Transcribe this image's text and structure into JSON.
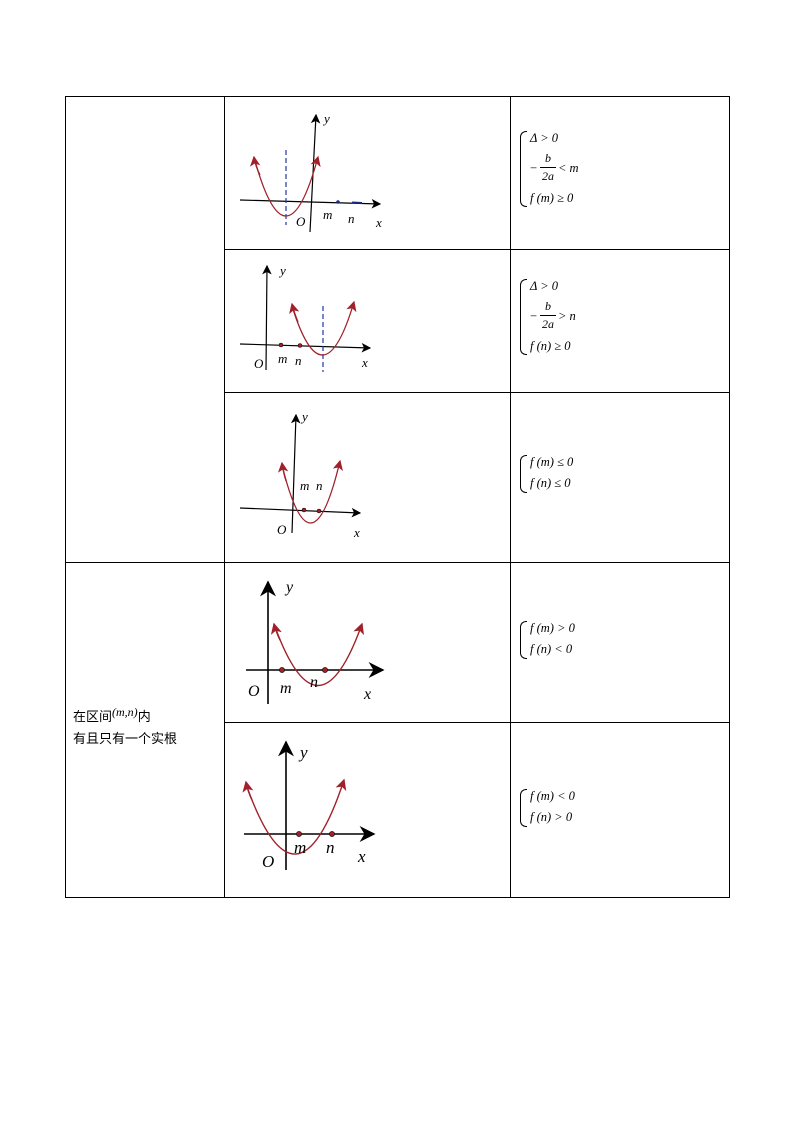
{
  "row2": {
    "label_prefix": "在区间",
    "label_interval": "(m,n)",
    "label_suffix": "内",
    "label_line2": "有且只有一个实根"
  },
  "axes": {
    "x": "x",
    "y": "y",
    "origin": "O",
    "m": "m",
    "n": "n"
  },
  "conditions": {
    "c1": {
      "l1": "Δ > 0",
      "frac_num": "b",
      "frac_den": "2a",
      "frac_prefix": "−",
      "frac_rel": "< m",
      "l3": "f (m) ≥ 0"
    },
    "c2": {
      "l1": "Δ > 0",
      "frac_num": "b",
      "frac_den": "2a",
      "frac_prefix": "−",
      "frac_rel": "> n",
      "l3": "f (n) ≥ 0"
    },
    "c3": {
      "l1": "f (m) ≤ 0",
      "l2": "f (n) ≤ 0"
    },
    "c4": {
      "l1": "f (m) > 0",
      "l2": "f (n) < 0"
    },
    "c5": {
      "l1": "f (m) < 0",
      "l2": "f (n) > 0"
    }
  },
  "colors": {
    "curve": "#a0212b",
    "dashed": "#2233aa",
    "axis": "#000000"
  }
}
